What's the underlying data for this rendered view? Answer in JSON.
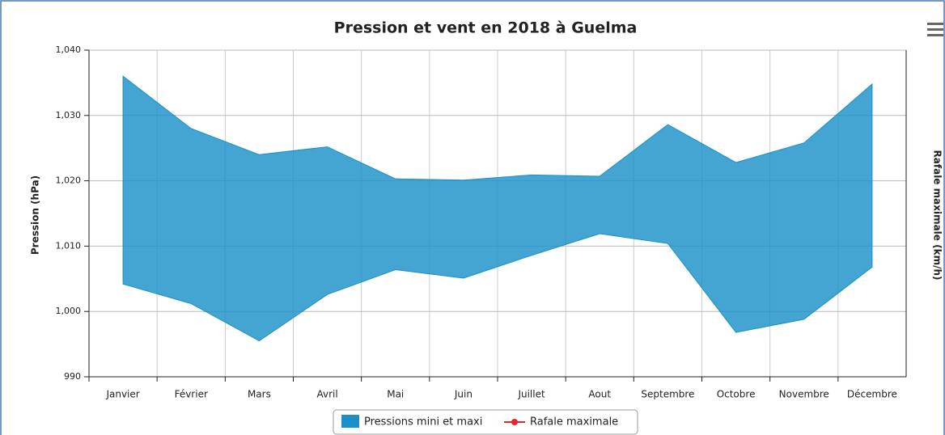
{
  "chart_data": {
    "type": "arearange",
    "title": "Pression et vent en 2018 à Guelma",
    "ylabel": "Pression (hPa)",
    "y2label": "Rafale maximale (km/h)",
    "categories": [
      "Janvier",
      "Février",
      "Mars",
      "Avril",
      "Mai",
      "Juin",
      "Juillet",
      "Aout",
      "Septembre",
      "Octobre",
      "Novembre",
      "Décembre"
    ],
    "series": [
      {
        "name": "Pressions mini et maxi",
        "color": "#1b90c8",
        "low": [
          1004.2,
          1001.2,
          995.5,
          1002.6,
          1006.4,
          1005.1,
          1008.6,
          1011.9,
          1010.4,
          996.8,
          998.8,
          1006.8
        ],
        "high": [
          1036,
          1028,
          1024,
          1025.2,
          1020.3,
          1020.1,
          1020.9,
          1020.7,
          1028.6,
          1022.8,
          1025.8,
          1034.8
        ]
      },
      {
        "name": "Rafale maximale",
        "color": "#e8262a",
        "axis": "y2"
      }
    ],
    "ylim": [
      990,
      1040
    ],
    "yticks": [
      990,
      {
        "value": 1000,
        "label": "1,000"
      },
      {
        "value": 1010,
        "label": "1,010"
      },
      {
        "value": 1020,
        "label": "1,020"
      },
      {
        "value": 1030,
        "label": "1,030"
      },
      {
        "value": 1040,
        "label": "1,040"
      }
    ],
    "grid": true
  }
}
